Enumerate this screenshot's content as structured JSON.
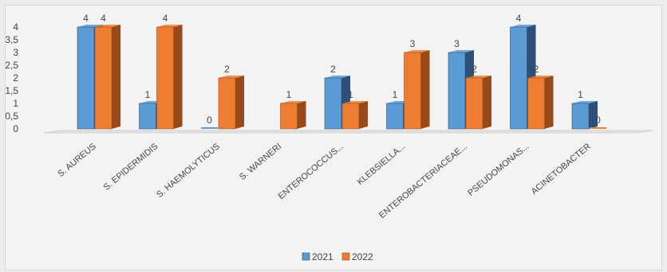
{
  "chart_data": {
    "type": "bar",
    "categories": [
      "S. AUREUS",
      "S. EPIDERMIDIS",
      "S. HAEMOLYTICUS",
      "S. WARNERI",
      "ENTEROCOCCUS...",
      "KLEBSIELLA...",
      "ENTEROBACTERIACEAE...",
      "PSEUDOMONAS...",
      "ACINETOBACTER"
    ],
    "series": [
      {
        "name": "2021",
        "values": [
          4,
          1,
          0,
          null,
          2,
          1,
          3,
          4,
          1
        ],
        "color": "#5b9bd5",
        "side_color": "#2e4f7a"
      },
      {
        "name": "2022",
        "values": [
          4,
          4,
          2,
          1,
          1,
          3,
          2,
          2,
          0
        ],
        "color": "#ed7d31",
        "side_color": "#9a4a1a"
      }
    ],
    "yticks": [
      "0",
      "0,5",
      "1",
      "1,5",
      "2",
      "2,5",
      "3",
      "3,5",
      "4"
    ],
    "ylim": [
      0,
      4
    ],
    "legend_position": "bottom",
    "style": "3d-clustered-column"
  }
}
